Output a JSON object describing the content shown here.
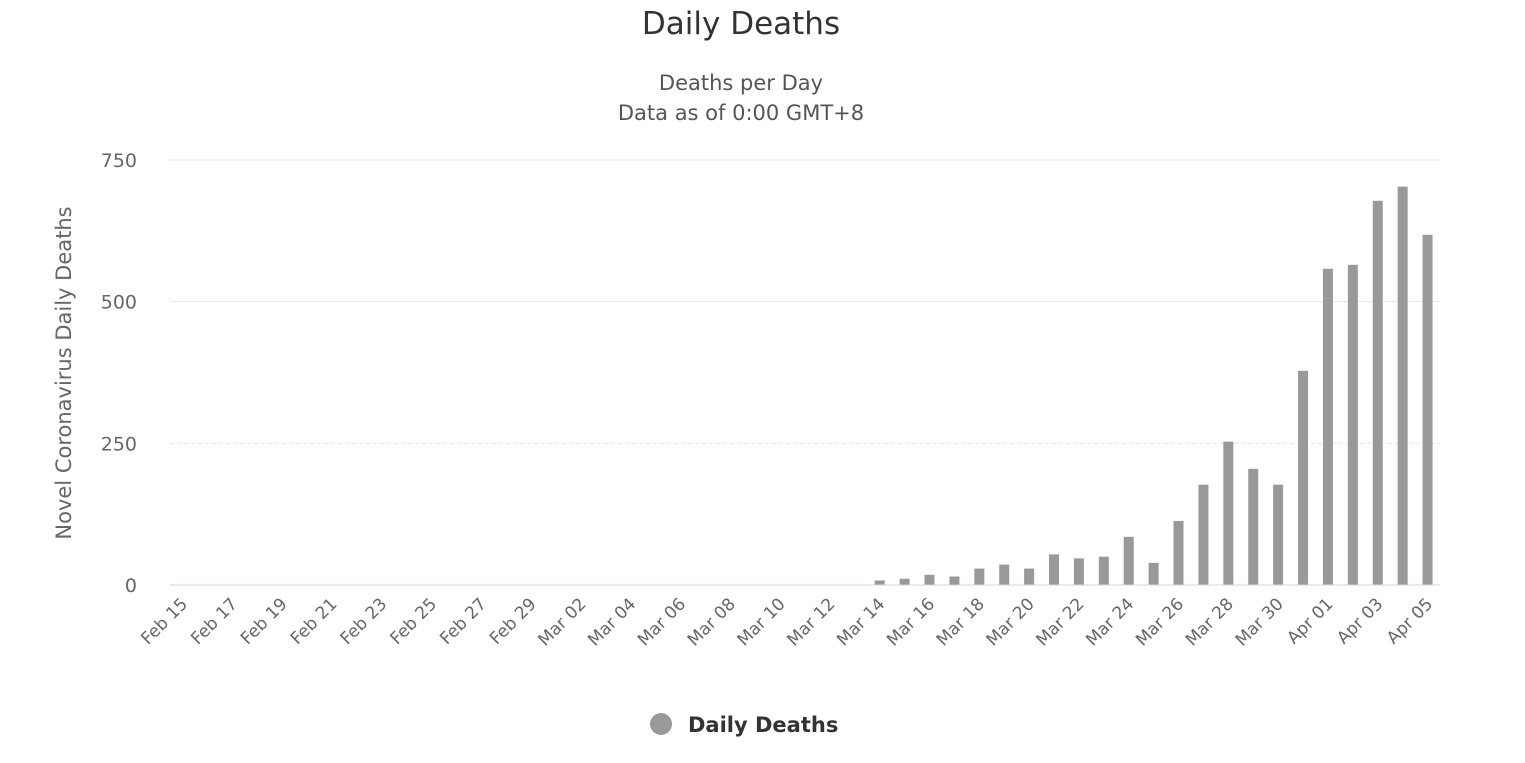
{
  "colors": {
    "bar": "#999999"
  },
  "chart_data": {
    "type": "bar",
    "title": "Daily Deaths",
    "subtitle_lines": [
      "Deaths per Day",
      "Data as of 0:00 GMT+8"
    ],
    "ylabel": "Novel Coronavirus Daily Deaths",
    "xlabel": "",
    "ylim": [
      0,
      750
    ],
    "yticks": [
      "0",
      "250",
      "500",
      "750"
    ],
    "grid": true,
    "legend_position": "bottom-center",
    "categories": [
      "Feb 15",
      "Feb 16",
      "Feb 17",
      "Feb 18",
      "Feb 19",
      "Feb 20",
      "Feb 21",
      "Feb 22",
      "Feb 23",
      "Feb 24",
      "Feb 25",
      "Feb 26",
      "Feb 27",
      "Feb 28",
      "Feb 29",
      "Mar 01",
      "Mar 02",
      "Mar 03",
      "Mar 04",
      "Mar 05",
      "Mar 06",
      "Mar 07",
      "Mar 08",
      "Mar 09",
      "Mar 10",
      "Mar 11",
      "Mar 12",
      "Mar 13",
      "Mar 14",
      "Mar 15",
      "Mar 16",
      "Mar 17",
      "Mar 18",
      "Mar 19",
      "Mar 20",
      "Mar 21",
      "Mar 22",
      "Mar 23",
      "Mar 24",
      "Mar 25",
      "Mar 26",
      "Mar 27",
      "Mar 28",
      "Mar 29",
      "Mar 30",
      "Mar 31",
      "Apr 01",
      "Apr 02",
      "Apr 03",
      "Apr 04",
      "Apr 05"
    ],
    "xtick_labels": [
      "Feb 15",
      "Feb 17",
      "Feb 19",
      "Feb 21",
      "Feb 23",
      "Feb 25",
      "Feb 27",
      "Feb 29",
      "Mar 02",
      "Mar 04",
      "Mar 06",
      "Mar 08",
      "Mar 10",
      "Mar 12",
      "Mar 14",
      "Mar 16",
      "Mar 18",
      "Mar 20",
      "Mar 22",
      "Mar 24",
      "Mar 26",
      "Mar 28",
      "Mar 30",
      "Apr 01",
      "Apr 03",
      "Apr 05"
    ],
    "series": [
      {
        "name": "Daily Deaths",
        "values": [
          0,
          0,
          0,
          0,
          0,
          0,
          0,
          0,
          0,
          0,
          0,
          0,
          0,
          0,
          0,
          0,
          0,
          0,
          0,
          0,
          0,
          0,
          0,
          0,
          0,
          0,
          0,
          0,
          8,
          11,
          18,
          15,
          29,
          36,
          29,
          54,
          47,
          50,
          85,
          39,
          113,
          177,
          253,
          205,
          177,
          378,
          558,
          565,
          678,
          703,
          618
        ]
      }
    ]
  }
}
